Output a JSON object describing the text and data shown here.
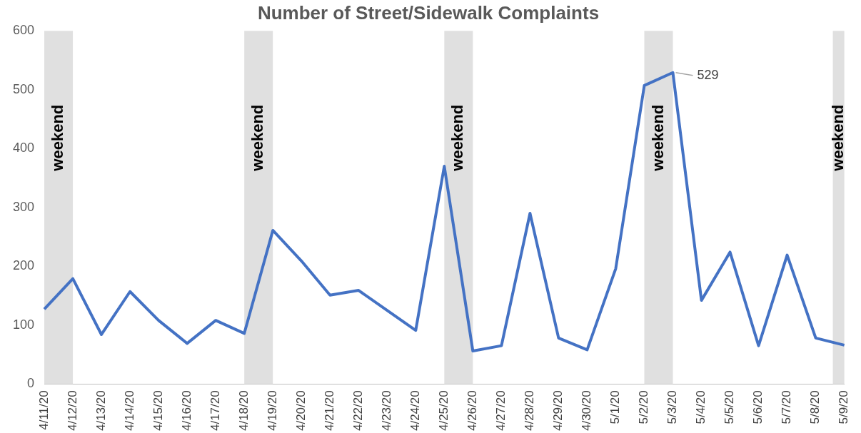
{
  "chart_data": {
    "type": "line",
    "title": "Number of Street/Sidewalk Complaints",
    "categories": [
      "4/11/20",
      "4/12/20",
      "4/13/20",
      "4/14/20",
      "4/15/20",
      "4/16/20",
      "4/17/20",
      "4/18/20",
      "4/19/20",
      "4/20/20",
      "4/21/20",
      "4/22/20",
      "4/23/20",
      "4/24/20",
      "4/25/20",
      "4/26/20",
      "4/27/20",
      "4/28/20",
      "4/29/20",
      "4/30/20",
      "5/1/20",
      "5/2/20",
      "5/3/20",
      "5/4/20",
      "5/5/20",
      "5/6/20",
      "5/7/20",
      "5/8/20",
      "5/9/20"
    ],
    "series": [
      {
        "color": "#4472c4",
        "values": [
          127,
          179,
          84,
          157,
          108,
          69,
          108,
          86,
          261,
          209,
          151,
          159,
          125,
          91,
          370,
          56,
          65,
          290,
          78,
          58,
          196,
          507,
          529,
          142,
          224,
          65,
          219,
          78,
          66
        ],
        "value_labels": [
          null,
          null,
          null,
          null,
          null,
          null,
          null,
          null,
          null,
          null,
          null,
          null,
          null,
          null,
          null,
          null,
          null,
          null,
          null,
          null,
          null,
          null,
          "529",
          null,
          null,
          null,
          null,
          null,
          null
        ]
      }
    ],
    "ylim": [
      0,
      600
    ],
    "yticks": [
      0,
      100,
      200,
      300,
      400,
      500,
      600
    ],
    "grid": false,
    "legend": false,
    "marker": "none",
    "line_style": "solid",
    "bands": [
      {
        "axis": "x",
        "from": "4/11/20",
        "to": "4/12/20",
        "label": "weekend",
        "color": "#e0e0e0"
      },
      {
        "axis": "x",
        "from": "4/18/20",
        "to": "4/19/20",
        "label": "weekend",
        "color": "#e0e0e0"
      },
      {
        "axis": "x",
        "from": "4/25/20",
        "to": "4/26/20",
        "label": "weekend",
        "color": "#e0e0e0"
      },
      {
        "axis": "x",
        "from": "5/2/20",
        "to": "5/3/20",
        "label": "weekend",
        "color": "#e0e0e0"
      },
      {
        "axis": "x",
        "from": "5/9/20",
        "to": "5/9/20",
        "label": "weekend",
        "color": "#e0e0e0"
      }
    ]
  }
}
